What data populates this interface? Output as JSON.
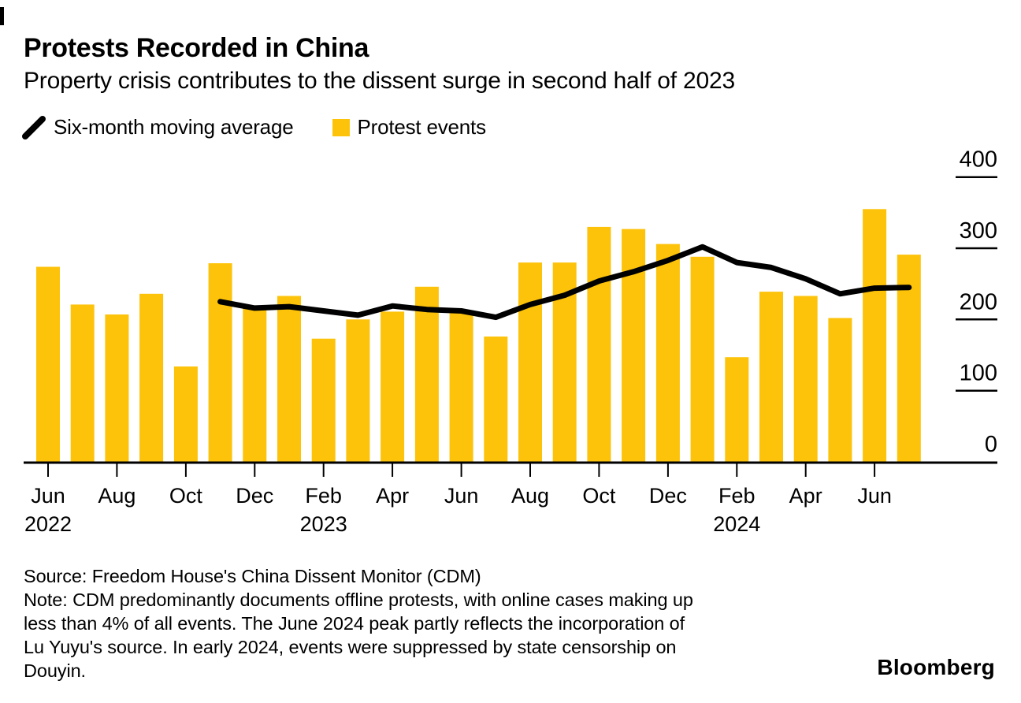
{
  "header": {
    "title": "Protests Recorded in China",
    "subtitle": "Property crisis contributes to the dissent surge in second half of 2023"
  },
  "legend": [
    {
      "type": "line",
      "label": "Six-month moving average",
      "color": "#000000"
    },
    {
      "type": "square",
      "label": "Protest events",
      "color": "#FDC30B"
    }
  ],
  "footer": {
    "source": "Source: Freedom House's China Dissent Monitor (CDM)",
    "note_lines": [
      "Note: CDM predominantly documents offline protests, with online cases making up",
      "less than 4% of all events. The June 2024 peak partly reflects the incorporation of",
      "Lu Yuyu's source. In early 2024, events were suppressed by state censorship on",
      "Douyin."
    ]
  },
  "branding": {
    "logo": "Bloomberg"
  },
  "chart_data": {
    "type": "bar",
    "title": "Protests Recorded in China",
    "subtitle": "Property crisis contributes to the dissent surge in second half of 2023",
    "x": [
      "Jun 2022",
      "Jul 2022",
      "Aug 2022",
      "Sep 2022",
      "Oct 2022",
      "Nov 2022",
      "Dec 2022",
      "Jan 2023",
      "Feb 2023",
      "Mar 2023",
      "Apr 2023",
      "May 2023",
      "Jun 2023",
      "Jul 2023",
      "Aug 2023",
      "Sep 2023",
      "Oct 2023",
      "Nov 2023",
      "Dec 2023",
      "Jan 2024",
      "Feb 2024",
      "Mar 2024",
      "Apr 2024",
      "May 2024",
      "Jun 2024",
      "Jul 2024"
    ],
    "series": [
      {
        "name": "Protest events",
        "type": "bar",
        "color": "#FDC30B",
        "values": [
          274,
          221,
          207,
          236,
          134,
          279,
          219,
          233,
          173,
          200,
          211,
          246,
          211,
          176,
          280,
          280,
          330,
          327,
          306,
          288,
          147,
          239,
          233,
          202,
          355,
          291
        ]
      },
      {
        "name": "Six-month moving average",
        "type": "line",
        "color": "#000000",
        "start_index": 5,
        "values": [
          225,
          216,
          218,
          212,
          206,
          219,
          214,
          212,
          203,
          221,
          234,
          254,
          267,
          283,
          302,
          280,
          273,
          257,
          236,
          244,
          245
        ]
      }
    ],
    "ylim": [
      0,
      400
    ],
    "yticks": [
      0,
      100,
      200,
      300,
      400
    ],
    "ytick_side": "right",
    "xtick_labels": [
      {
        "index": 0,
        "month": "Jun",
        "year": "2022"
      },
      {
        "index": 2,
        "month": "Aug"
      },
      {
        "index": 4,
        "month": "Oct"
      },
      {
        "index": 6,
        "month": "Dec"
      },
      {
        "index": 8,
        "month": "Feb",
        "year": "2023"
      },
      {
        "index": 10,
        "month": "Apr"
      },
      {
        "index": 12,
        "month": "Jun"
      },
      {
        "index": 14,
        "month": "Aug"
      },
      {
        "index": 16,
        "month": "Oct"
      },
      {
        "index": 18,
        "month": "Dec"
      },
      {
        "index": 20,
        "month": "Feb",
        "year": "2024"
      },
      {
        "index": 22,
        "month": "Apr"
      },
      {
        "index": 24,
        "month": "Jun"
      }
    ],
    "grid": false,
    "legend_position": "top-left"
  }
}
